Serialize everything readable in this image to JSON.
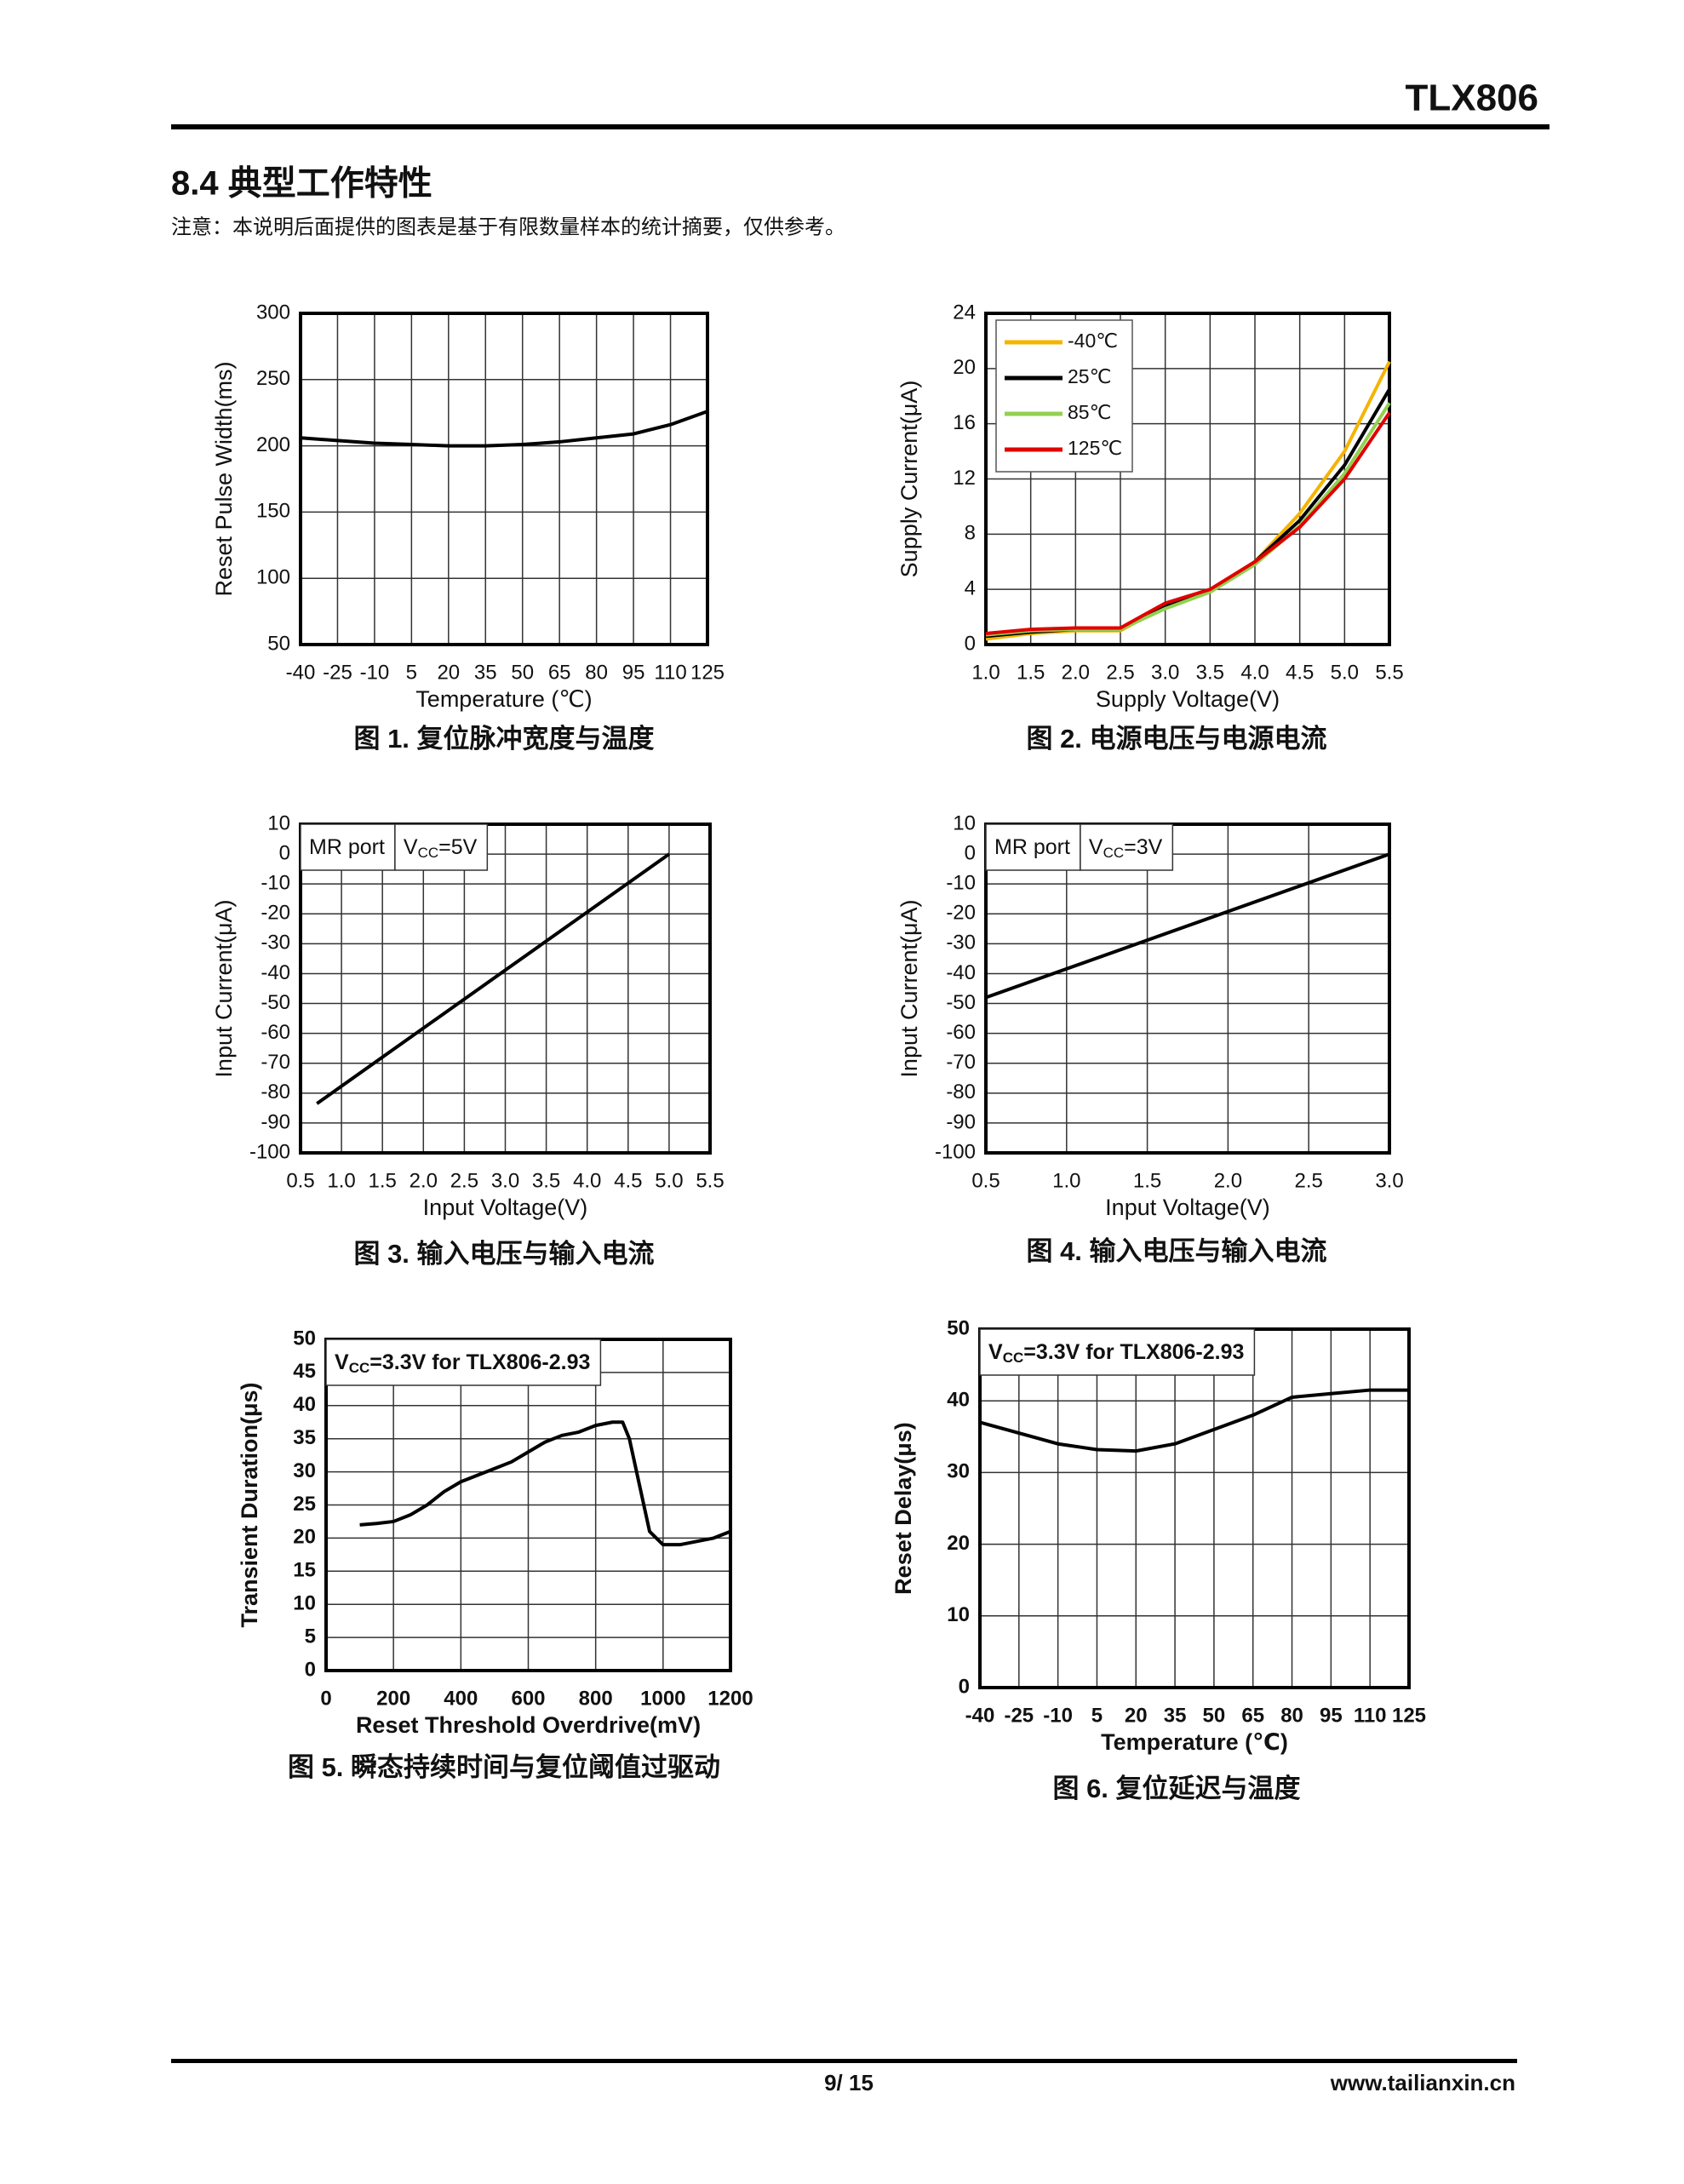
{
  "header": {
    "title": "TLX806"
  },
  "section": {
    "title": "8.4 典型工作特性",
    "note": "注意：本说明后面提供的图表是基于有限数量样本的统计摘要，仅供参考。"
  },
  "chart_data": [
    {
      "type": "line",
      "caption": "图 1. 复位脉冲宽度与温度",
      "xlabel": "Temperature (℃)",
      "ylabel": "Reset Pulse Width(ms)",
      "xlim": [
        -40,
        125
      ],
      "ylim": [
        50,
        300
      ],
      "xticks": [
        -40,
        -25,
        -10,
        5,
        20,
        35,
        50,
        65,
        80,
        95,
        110,
        125
      ],
      "yticks": [
        50,
        100,
        150,
        200,
        250,
        300
      ],
      "grid": true,
      "x": [
        -40,
        -25,
        -10,
        5,
        20,
        35,
        50,
        65,
        80,
        95,
        110,
        125
      ],
      "values": [
        206,
        204,
        202,
        201,
        200,
        200,
        201,
        203,
        206,
        209,
        216,
        226
      ],
      "color": "#000000"
    },
    {
      "type": "line",
      "caption": "图 2. 电源电压与电源电流",
      "xlabel": "Supply Voltage(V)",
      "ylabel": "Supply Current(μA)",
      "xlim": [
        1,
        5.5
      ],
      "ylim": [
        0,
        24
      ],
      "xticks": [
        {
          "value": 1,
          "label": "1.0"
        },
        1.5,
        {
          "value": 2,
          "label": "2.0"
        },
        2.5,
        {
          "value": 3,
          "label": "3.0"
        },
        3.5,
        {
          "value": 4,
          "label": "4.0"
        },
        4.5,
        {
          "value": 5,
          "label": "5.0"
        },
        5.5
      ],
      "yticks": [
        0,
        4,
        8,
        12,
        16,
        20,
        24
      ],
      "grid": true,
      "legend": "upper left",
      "x": [
        1,
        1.5,
        2,
        2.5,
        3,
        3.5,
        4,
        4.5,
        5,
        5.5
      ],
      "series": [
        {
          "name": "-40℃",
          "color": "#f5b400",
          "values": [
            0.4,
            0.8,
            1.0,
            1.0,
            2.8,
            3.8,
            6.0,
            9.5,
            14.0,
            20.5
          ]
        },
        {
          "name": "25℃",
          "color": "#000000",
          "values": [
            0.6,
            0.9,
            1.1,
            1.1,
            2.8,
            3.9,
            6.0,
            9.0,
            13.0,
            18.5
          ]
        },
        {
          "name": "85℃",
          "color": "#92d050",
          "values": [
            0.7,
            1.0,
            1.1,
            1.1,
            2.6,
            3.8,
            5.8,
            8.6,
            12.4,
            17.5
          ]
        },
        {
          "name": "125℃",
          "color": "#e00000",
          "values": [
            0.8,
            1.1,
            1.2,
            1.2,
            3.0,
            4.0,
            6.0,
            8.5,
            12.0,
            16.8
          ]
        }
      ]
    },
    {
      "type": "line",
      "caption": "图 3. 输入电压与输入电流",
      "xlabel": "Input Voltage(V)",
      "ylabel": "Input Current(μA)",
      "xlim": [
        0.5,
        5.5
      ],
      "ylim": [
        -100,
        10
      ],
      "xticks": [
        0.5,
        {
          "value": 1,
          "label": "1.0"
        },
        1.5,
        {
          "value": 2,
          "label": "2.0"
        },
        2.5,
        {
          "value": 3,
          "label": "3.0"
        },
        3.5,
        {
          "value": 4,
          "label": "4.0"
        },
        4.5,
        {
          "value": 5,
          "label": "5.0"
        },
        5.5
      ],
      "yticks": [
        -100,
        -90,
        -80,
        -70,
        -60,
        -50,
        -40,
        -30,
        -20,
        -10,
        0,
        10
      ],
      "grid": true,
      "annotations": [
        {
          "text": "MR port"
        },
        {
          "text": "V",
          "sub": "CC",
          "rest": "=5V"
        }
      ],
      "x": [
        0.7,
        5.0
      ],
      "values": [
        -83.5,
        0
      ],
      "color": "#000000"
    },
    {
      "type": "line",
      "caption": "图 4. 输入电压与输入电流",
      "xlabel": "Input Voltage(V)",
      "ylabel": "Input Current(μA)",
      "xlim": [
        0.5,
        3
      ],
      "ylim": [
        -100,
        10
      ],
      "xticks": [
        0.5,
        {
          "value": 1,
          "label": "1.0"
        },
        1.5,
        {
          "value": 2,
          "label": "2.0"
        },
        2.5,
        {
          "value": 3,
          "label": "3.0"
        }
      ],
      "yticks": [
        -100,
        -90,
        -80,
        -70,
        -60,
        -50,
        -40,
        -30,
        -20,
        -10,
        0,
        10
      ],
      "grid": true,
      "annotations": [
        {
          "text": "MR port"
        },
        {
          "text": "V",
          "sub": "CC",
          "rest": "=3V"
        }
      ],
      "x": [
        0.5,
        3.0
      ],
      "values": [
        -48,
        0
      ],
      "color": "#000000"
    },
    {
      "type": "line",
      "caption": "图 5. 瞬态持续时间与复位阈值过驱动",
      "xlabel": "Reset Threshold Overdrive(mV)",
      "ylabel": "Transient Duration(μs)",
      "xlim": [
        0,
        1200
      ],
      "ylim": [
        0,
        50
      ],
      "xticks": [
        0,
        200,
        400,
        600,
        800,
        1000,
        1200
      ],
      "yticks": [
        0,
        5,
        10,
        15,
        20,
        25,
        30,
        35,
        40,
        45,
        50
      ],
      "grid": true,
      "annotations": [
        {
          "text": "V",
          "sub": "CC",
          "rest": "=3.3V for TLX806-2.93"
        }
      ],
      "x": [
        100,
        150,
        200,
        250,
        300,
        350,
        400,
        450,
        500,
        550,
        600,
        650,
        700,
        750,
        800,
        850,
        880,
        900,
        930,
        960,
        1000,
        1050,
        1100,
        1150,
        1200
      ],
      "values": [
        22,
        22.2,
        22.5,
        23.5,
        25,
        27,
        28.5,
        29.5,
        30.5,
        31.5,
        33,
        34.5,
        35.5,
        36,
        37,
        37.5,
        37.5,
        35,
        28,
        21,
        19,
        19,
        19.5,
        20,
        21
      ],
      "color": "#000000"
    },
    {
      "type": "line",
      "caption": "图 6. 复位延迟与温度",
      "xlabel": "Temperature (℃)",
      "ylabel": "Reset Delay(μs)",
      "xlim": [
        -40,
        125
      ],
      "ylim": [
        0,
        50
      ],
      "xticks": [
        -40,
        -25,
        -10,
        5,
        20,
        35,
        50,
        65,
        80,
        95,
        110,
        125
      ],
      "yticks": [
        0,
        10,
        20,
        30,
        40,
        50
      ],
      "grid": true,
      "annotations": [
        {
          "text": "V",
          "sub": "CC",
          "rest": "=3.3V for TLX806-2.93"
        }
      ],
      "x": [
        -40,
        -25,
        -10,
        5,
        20,
        35,
        50,
        65,
        80,
        95,
        110,
        125
      ],
      "values": [
        37,
        35.5,
        34,
        33.2,
        33,
        34,
        36,
        38,
        40.5,
        41,
        41.5,
        41.5
      ],
      "color": "#000000"
    }
  ],
  "footer": {
    "page": "9/ 15",
    "website": "www.tailianxin.cn"
  }
}
